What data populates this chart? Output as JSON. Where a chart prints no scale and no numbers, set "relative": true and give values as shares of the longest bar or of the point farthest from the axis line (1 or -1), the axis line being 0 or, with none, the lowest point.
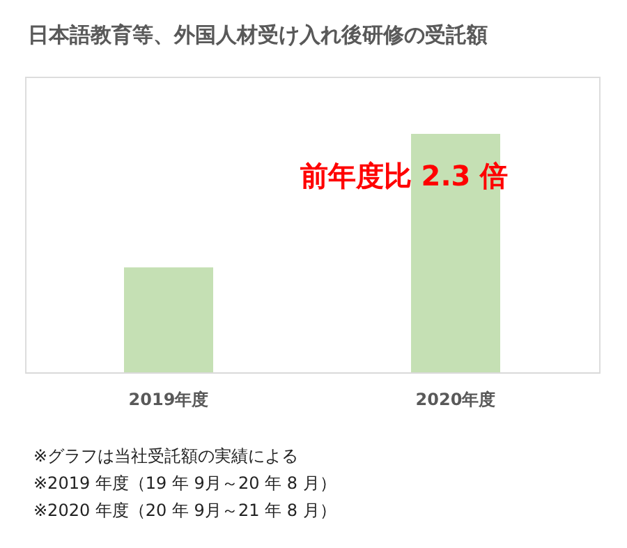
{
  "chart_data": {
    "type": "bar",
    "title": "日本語教育等、外国人材受け入れ後研修の受託額",
    "categories": [
      "2019年度",
      "2020年度"
    ],
    "values": [
      0.44,
      1
    ],
    "color": "#c5e0b4",
    "relative": true,
    "annotations": [
      "前年度比 2.3 倍",
      "※グラフは当社受託額の実績による",
      "※2019 年度（19 年 9月～20 年 8 月）",
      "※2020 年度（20 年 9月～21 年 8 月）"
    ]
  }
}
